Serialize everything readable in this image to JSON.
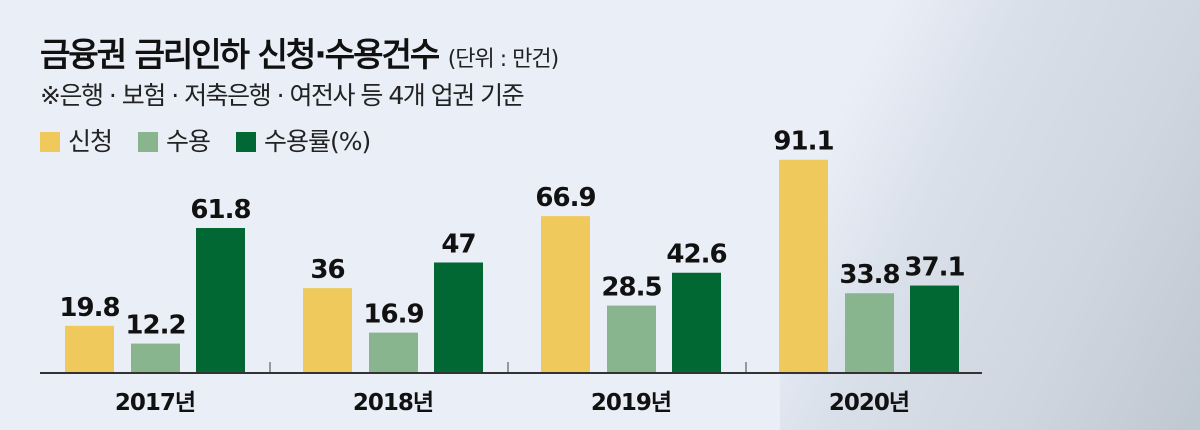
{
  "title": "금융권 금리인하 신청·수용건수",
  "unit": "(단위 : 만건)",
  "note": "※은행 · 보험 · 저축은행 · 여전사 등 4개 업권 기준",
  "colors": {
    "신청": "#efc95c",
    "수용": "#89b58e",
    "수용률": "#016834"
  },
  "chart_data": {
    "type": "bar",
    "title": "금융권 금리인하 신청·수용건수",
    "categories": [
      "2017년",
      "2018년",
      "2019년",
      "2020년"
    ],
    "series": [
      {
        "name": "신청",
        "values": [
          19.8,
          36,
          66.9,
          91.1
        ]
      },
      {
        "name": "수용",
        "values": [
          12.2,
          16.9,
          28.5,
          33.8
        ]
      },
      {
        "name": "수용률(%)",
        "values": [
          61.8,
          47,
          42.6,
          37.1
        ]
      }
    ],
    "labels": [
      [
        "19.8",
        "36",
        "66.9",
        "91.1"
      ],
      [
        "12.2",
        "16.9",
        "28.5",
        "33.8"
      ],
      [
        "61.8",
        "47",
        "42.6",
        "37.1"
      ]
    ],
    "legend_position": "top-left",
    "grid": false,
    "ylim": [
      0,
      95
    ]
  }
}
